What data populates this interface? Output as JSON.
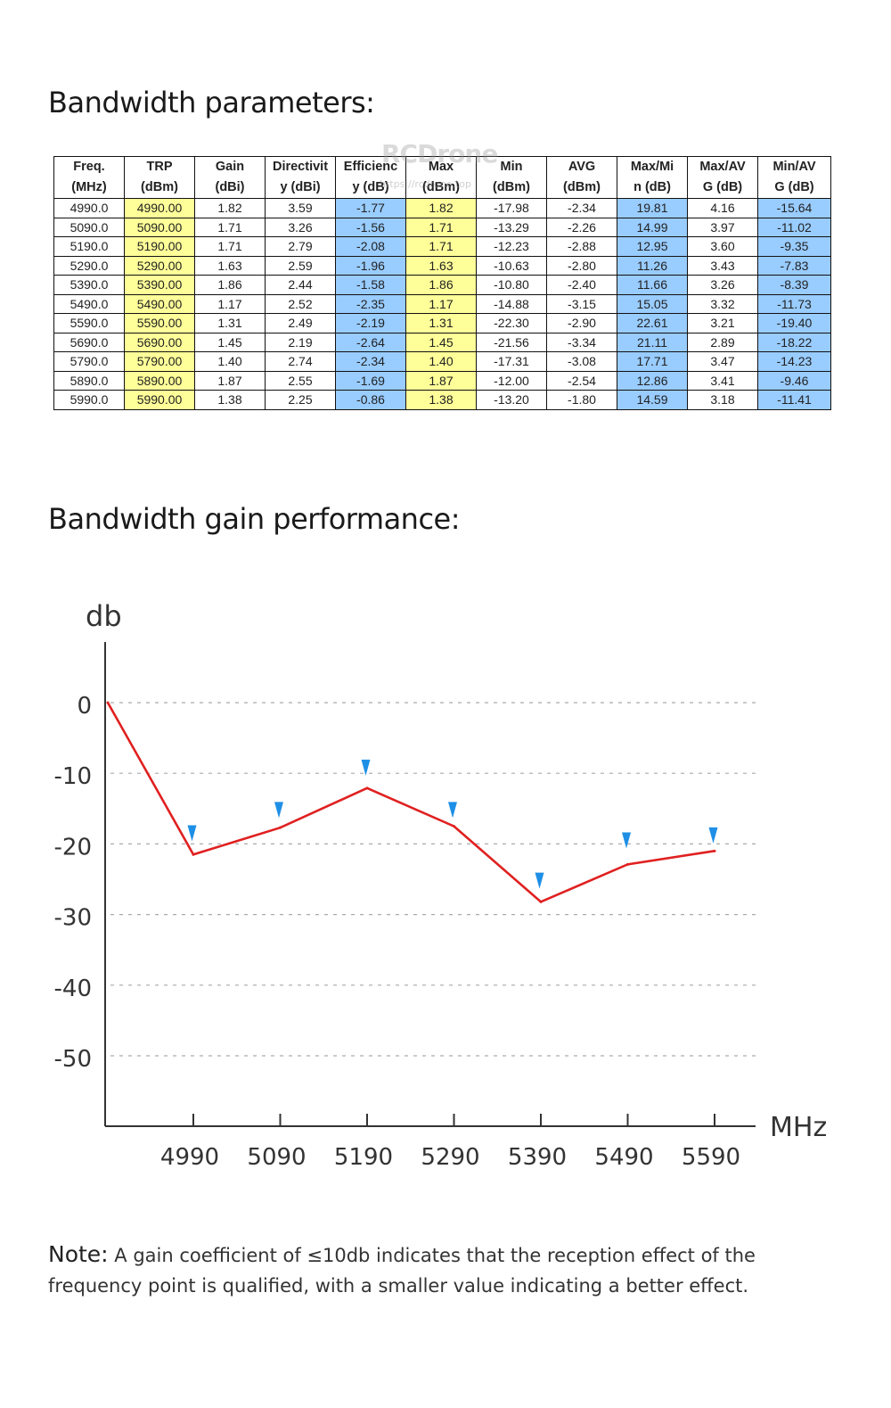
{
  "section_table_title": "Bandwidth parameters:",
  "section_chart_title": "Bandwidth gain performance:",
  "watermark": "RCDrone",
  "watermark_url": "https://rcdrone.top",
  "table": {
    "headers": [
      [
        "Freq.",
        "(MHz)"
      ],
      [
        "TRP",
        "(dBm)"
      ],
      [
        "Gain",
        "(dBi)"
      ],
      [
        "Directivit",
        "y (dBi)"
      ],
      [
        "Efficienc",
        "y (dB)"
      ],
      [
        "Max",
        "(dBm)"
      ],
      [
        "Min",
        "(dBm)"
      ],
      [
        "AVG",
        "(dBm)"
      ],
      [
        "Max/Mi",
        "n (dB)"
      ],
      [
        "Max/AV",
        "G (dB)"
      ],
      [
        "Min/AV",
        "G (dB)"
      ]
    ],
    "column_colors": [
      "white",
      "yellow",
      "white",
      "white",
      "blue",
      "yellow",
      "white",
      "white",
      "blue",
      "white",
      "blue"
    ],
    "rows": [
      [
        "4990.0",
        "4990.00",
        "1.82",
        "3.59",
        "-1.77",
        "1.82",
        "-17.98",
        "-2.34",
        "19.81",
        "4.16",
        "-15.64"
      ],
      [
        "5090.0",
        "5090.00",
        "1.71",
        "3.26",
        "-1.56",
        "1.71",
        "-13.29",
        "-2.26",
        "14.99",
        "3.97",
        "-11.02"
      ],
      [
        "5190.0",
        "5190.00",
        "1.71",
        "2.79",
        "-2.08",
        "1.71",
        "-12.23",
        "-2.88",
        "12.95",
        "3.60",
        "-9.35"
      ],
      [
        "5290.0",
        "5290.00",
        "1.63",
        "2.59",
        "-1.96",
        "1.63",
        "-10.63",
        "-2.80",
        "11.26",
        "3.43",
        "-7.83"
      ],
      [
        "5390.0",
        "5390.00",
        "1.86",
        "2.44",
        "-1.58",
        "1.86",
        "-10.80",
        "-2.40",
        "11.66",
        "3.26",
        "-8.39"
      ],
      [
        "5490.0",
        "5490.00",
        "1.17",
        "2.52",
        "-2.35",
        "1.17",
        "-14.88",
        "-3.15",
        "15.05",
        "3.32",
        "-11.73"
      ],
      [
        "5590.0",
        "5590.00",
        "1.31",
        "2.49",
        "-2.19",
        "1.31",
        "-22.30",
        "-2.90",
        "22.61",
        "3.21",
        "-19.40"
      ],
      [
        "5690.0",
        "5690.00",
        "1.45",
        "2.19",
        "-2.64",
        "1.45",
        "-21.56",
        "-3.34",
        "21.11",
        "2.89",
        "-18.22"
      ],
      [
        "5790.0",
        "5790.00",
        "1.40",
        "2.74",
        "-2.34",
        "1.40",
        "-17.31",
        "-3.08",
        "17.71",
        "3.47",
        "-14.23"
      ],
      [
        "5890.0",
        "5890.00",
        "1.87",
        "2.55",
        "-1.69",
        "1.87",
        "-12.00",
        "-2.54",
        "12.86",
        "3.41",
        "-9.46"
      ],
      [
        "5990.0",
        "5990.00",
        "1.38",
        "2.25",
        "-0.86",
        "1.38",
        "-13.20",
        "-1.80",
        "14.59",
        "3.18",
        "-11.41"
      ]
    ]
  },
  "chart_data": {
    "type": "line",
    "ylabel": "db",
    "xlabel": "MHz",
    "yticks": [
      "0",
      "-10",
      "-20",
      "-30",
      "-40",
      "-50"
    ],
    "ylim": [
      -60,
      0
    ],
    "grid": true,
    "categories": [
      "4990",
      "5090",
      "5190",
      "5290",
      "5390",
      "5490",
      "5590"
    ],
    "series": [
      {
        "color": "#e02020",
        "x": [
          null,
          "4990",
          "5090",
          "5190",
          "5290",
          "5390",
          "5490",
          "5590"
        ],
        "values": [
          0,
          -21.5,
          -17.7,
          -12.1,
          -17.5,
          -28.2,
          -22.9,
          -21.0
        ]
      }
    ],
    "markers": {
      "color": "#1e8fe6",
      "shape": "triangle-down",
      "values": [
        -18.5,
        -15.2,
        -9.2,
        -15.2,
        -25.2,
        -19.5,
        -18.8
      ]
    }
  },
  "note": {
    "label": "Note:",
    "text": "A gain coefficient of ≤10db indicates that the reception effect of the frequency point is qualified, with a smaller value indicating a better effect."
  }
}
